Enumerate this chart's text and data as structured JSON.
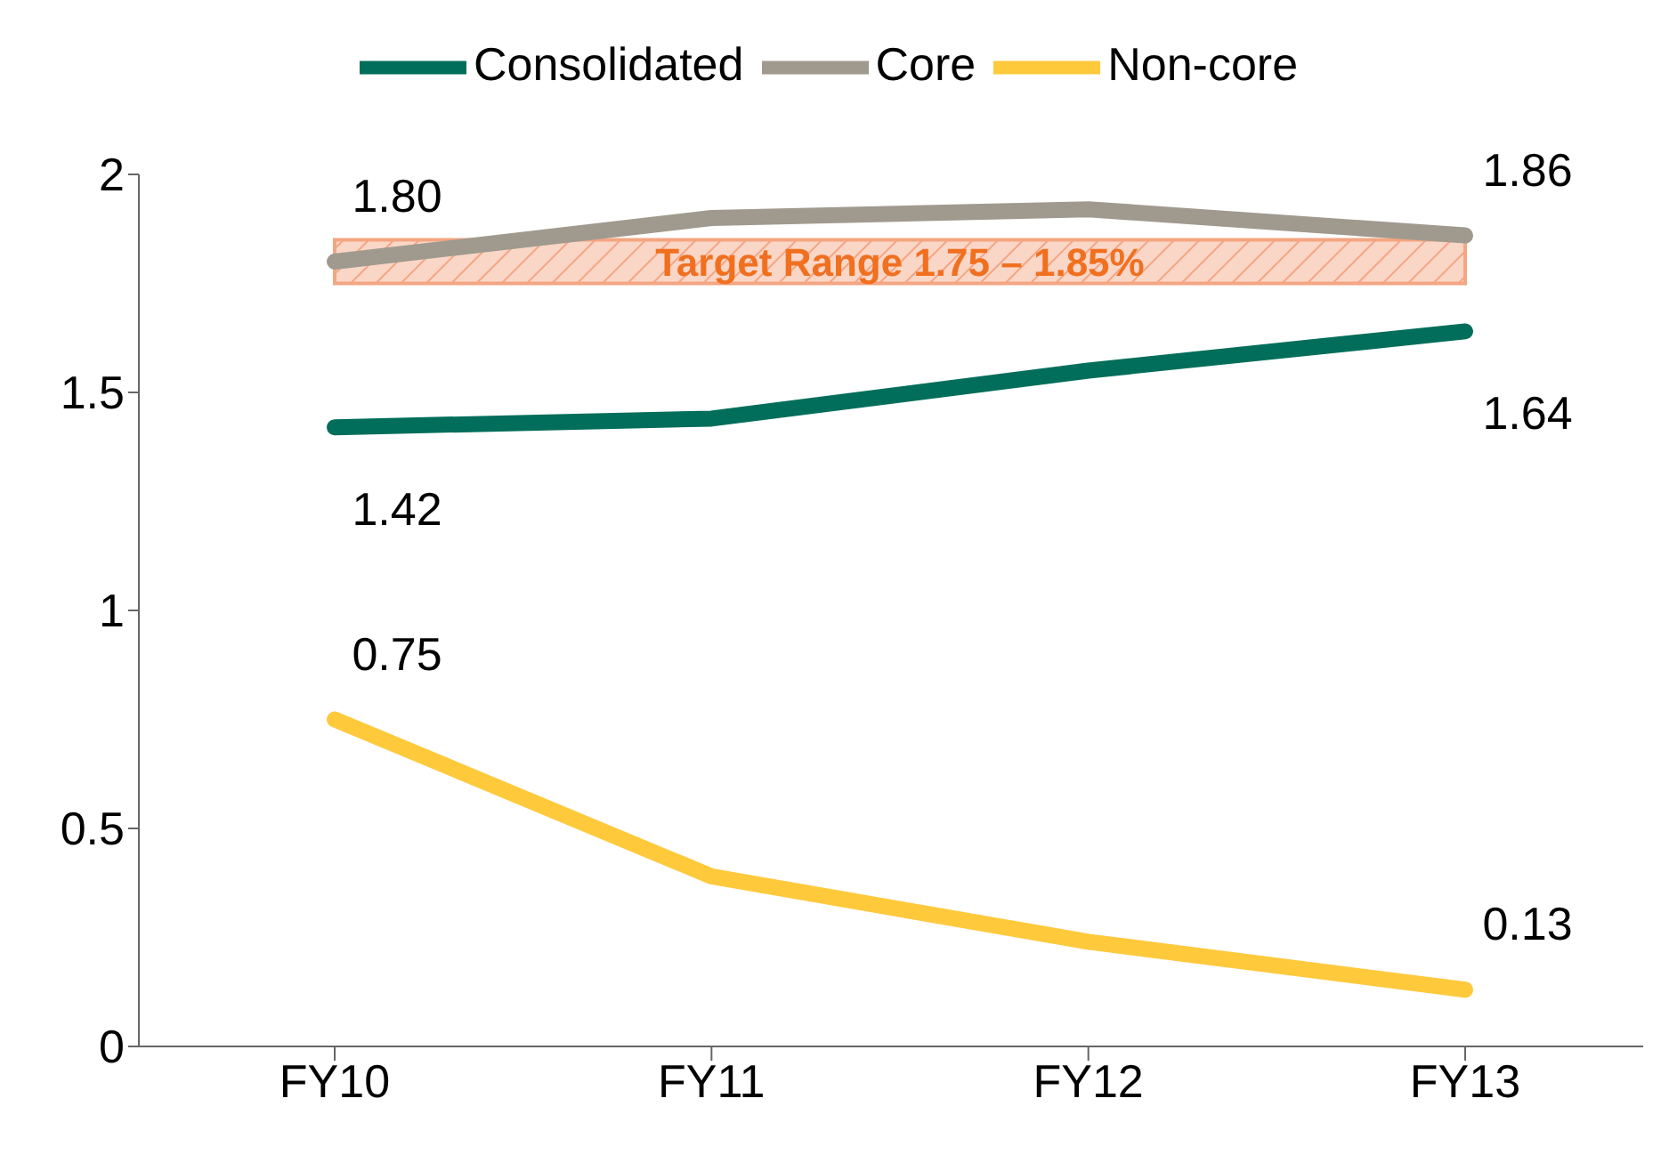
{
  "chart_data": {
    "type": "line",
    "categories": [
      "FY10",
      "FY11",
      "FY12",
      "FY13"
    ],
    "series": [
      {
        "name": "Consolidated",
        "color": "#006e5a",
        "values": [
          1.42,
          1.44,
          1.55,
          1.64
        ],
        "value_labels": [
          "1.42",
          null,
          null,
          "1.64"
        ]
      },
      {
        "name": "Core",
        "color": "#a09a8e",
        "values": [
          1.8,
          1.9,
          1.92,
          1.86
        ],
        "value_labels": [
          "1.80",
          null,
          null,
          "1.86"
        ]
      },
      {
        "name": "Non-core",
        "color": "#ffc93c",
        "values": [
          0.75,
          0.39,
          0.24,
          0.13
        ],
        "value_labels": [
          "0.75",
          null,
          null,
          "0.13"
        ]
      }
    ],
    "ylim": [
      0,
      2
    ],
    "yticks": [
      0,
      0.5,
      1,
      1.5,
      2
    ],
    "bands": [
      {
        "axis": "y",
        "from": 1.75,
        "to": 1.85,
        "label": "Target Range 1.75 – 1.85%",
        "color": "#f4a582"
      }
    ],
    "grid": false,
    "legend": "top",
    "marker": "none",
    "line_style": "solid"
  }
}
